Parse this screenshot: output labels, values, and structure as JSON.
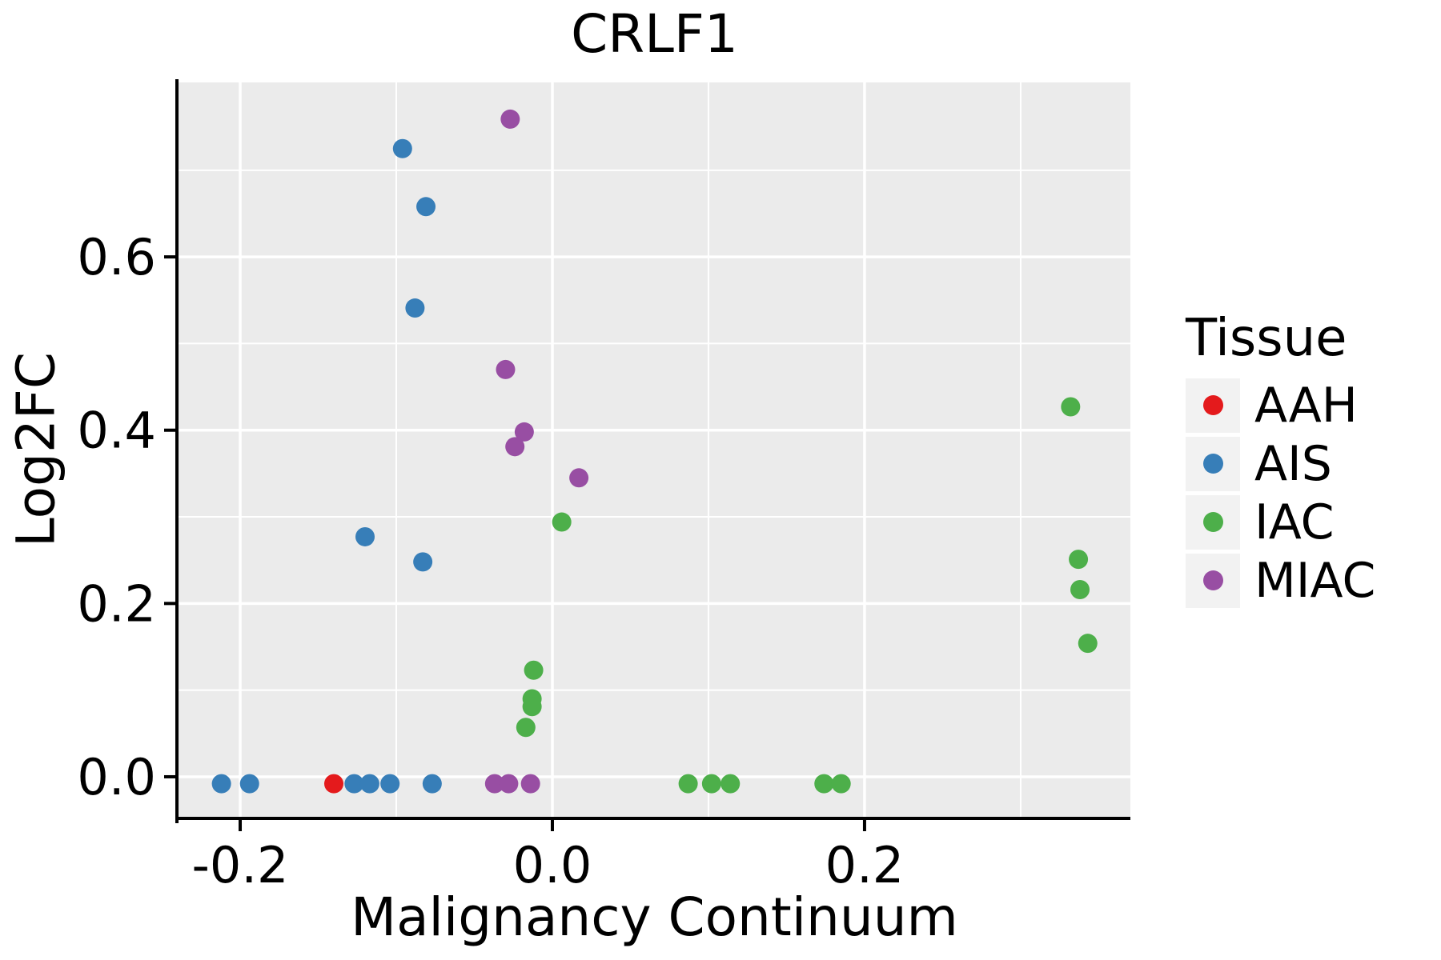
{
  "figure": {
    "background": "#FFFFFF"
  },
  "chart_data": {
    "type": "scatter",
    "title": "CRLF1",
    "xlabel": "Malignancy Continuum",
    "ylabel": "Log2FC",
    "xlim": [
      -0.2395,
      0.3703
    ],
    "ylim": [
      -0.0462,
      0.8014
    ],
    "x_major_ticks": [
      -0.2,
      0.0,
      0.2
    ],
    "x_tick_labels": [
      "-0.2",
      "0.0",
      "0.2"
    ],
    "x_minor_gridlines": [
      -0.1,
      0.1,
      0.3
    ],
    "y_major_ticks": [
      0.0,
      0.2,
      0.4,
      0.6
    ],
    "y_tick_labels": [
      "0.0",
      "0.2",
      "0.4",
      "0.6"
    ],
    "y_minor_gridlines": [
      0.1,
      0.3,
      0.5,
      0.7
    ],
    "grid": true,
    "panel_background": "#EBEBEB",
    "gridline_color": "#FFFFFF",
    "axis_color": "#000000",
    "point_radius": 12,
    "legend_position": "right",
    "series": [
      {
        "name": "AIS",
        "color": "#377EB8",
        "points": [
          [
            -0.212,
            -0.008
          ],
          [
            -0.194,
            -0.008
          ],
          [
            -0.127,
            -0.008
          ],
          [
            -0.117,
            -0.008
          ],
          [
            -0.104,
            -0.008
          ],
          [
            -0.077,
            -0.008
          ],
          [
            -0.096,
            0.725
          ],
          [
            -0.081,
            0.658
          ],
          [
            -0.088,
            0.541
          ],
          [
            -0.12,
            0.277
          ],
          [
            -0.083,
            0.248
          ]
        ]
      },
      {
        "name": "MIAC",
        "color": "#984EA3",
        "points": [
          [
            -0.027,
            0.759
          ],
          [
            -0.03,
            0.47
          ],
          [
            -0.018,
            0.398
          ],
          [
            -0.024,
            0.381
          ],
          [
            0.017,
            0.345
          ],
          [
            -0.037,
            -0.008
          ],
          [
            -0.028,
            -0.008
          ],
          [
            -0.014,
            -0.008
          ]
        ]
      },
      {
        "name": "IAC",
        "color": "#4DAF4A",
        "points": [
          [
            0.006,
            0.294
          ],
          [
            -0.012,
            0.123
          ],
          [
            -0.013,
            0.09
          ],
          [
            -0.013,
            0.081
          ],
          [
            -0.017,
            0.057
          ],
          [
            0.332,
            0.427
          ],
          [
            0.337,
            0.251
          ],
          [
            0.338,
            0.216
          ],
          [
            0.343,
            0.154
          ],
          [
            0.087,
            -0.008
          ],
          [
            0.102,
            -0.008
          ],
          [
            0.114,
            -0.008
          ],
          [
            0.174,
            -0.008
          ],
          [
            0.185,
            -0.008
          ]
        ]
      },
      {
        "name": "AAH",
        "color": "#E41A1C",
        "points": [
          [
            -0.14,
            -0.008
          ]
        ]
      }
    ]
  },
  "legend": {
    "title": "Tissue",
    "items": [
      {
        "label": "AAH",
        "color": "#E41A1C"
      },
      {
        "label": "AIS",
        "color": "#377EB8"
      },
      {
        "label": "IAC",
        "color": "#4DAF4A"
      },
      {
        "label": "MIAC",
        "color": "#984EA3"
      }
    ]
  }
}
